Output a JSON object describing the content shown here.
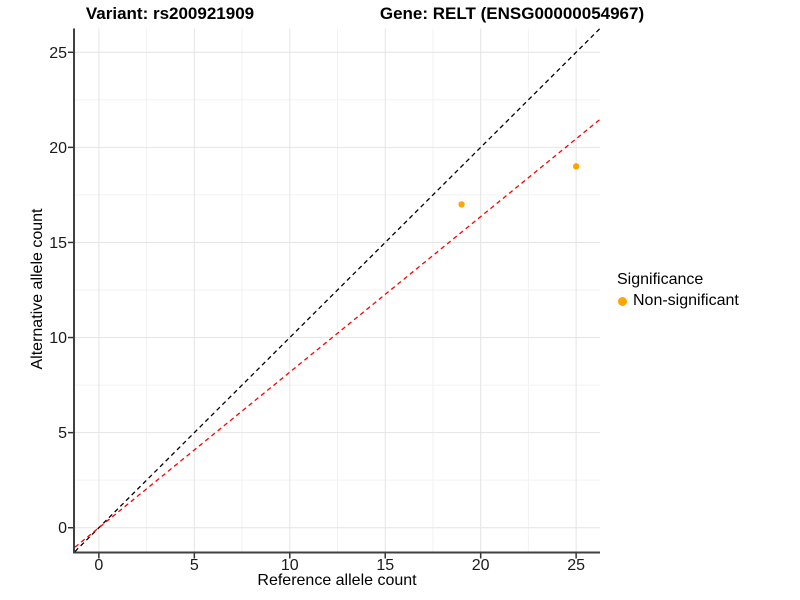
{
  "titles": {
    "variant": "Variant: rs200921909",
    "gene": "Gene: RELT (ENSG00000054967)"
  },
  "legend": {
    "title": "Significance",
    "items": [
      {
        "label": "Non-significant",
        "color": "#FFA500"
      }
    ]
  },
  "chart_data": {
    "type": "scatter",
    "xlabel": "Reference allele count",
    "ylabel": "Alternative allele count",
    "xlim": [
      -1.25,
      26.25
    ],
    "ylim": [
      -1.25,
      26.25
    ],
    "x_ticks": [
      0,
      5,
      10,
      15,
      20,
      25
    ],
    "y_ticks": [
      0,
      5,
      10,
      15,
      20,
      25
    ],
    "x_minor_ticks": [
      2.5,
      7.5,
      12.5,
      17.5,
      22.5
    ],
    "y_minor_ticks": [
      2.5,
      7.5,
      12.5,
      17.5,
      22.5
    ],
    "grid": true,
    "legend_position": "right",
    "series": [
      {
        "name": "Non-significant",
        "color": "#FFA500",
        "marker": "circle",
        "points": [
          {
            "x": 19,
            "y": 17
          },
          {
            "x": 25,
            "y": 19
          }
        ]
      }
    ],
    "reference_lines": [
      {
        "name": "identity",
        "slope": 1,
        "intercept": 0,
        "color": "#000000",
        "style": "dashed"
      },
      {
        "name": "allelic-ratio-fit",
        "slope": 0.818,
        "intercept": 0,
        "color": "#FF0000",
        "style": "dashed"
      }
    ],
    "colors": {
      "grid_major": "#E4E4E4",
      "grid_minor": "#F2F2F2",
      "axis_line": "#404040",
      "tick": "#333333",
      "tick_label": "#1a1a1a"
    }
  }
}
